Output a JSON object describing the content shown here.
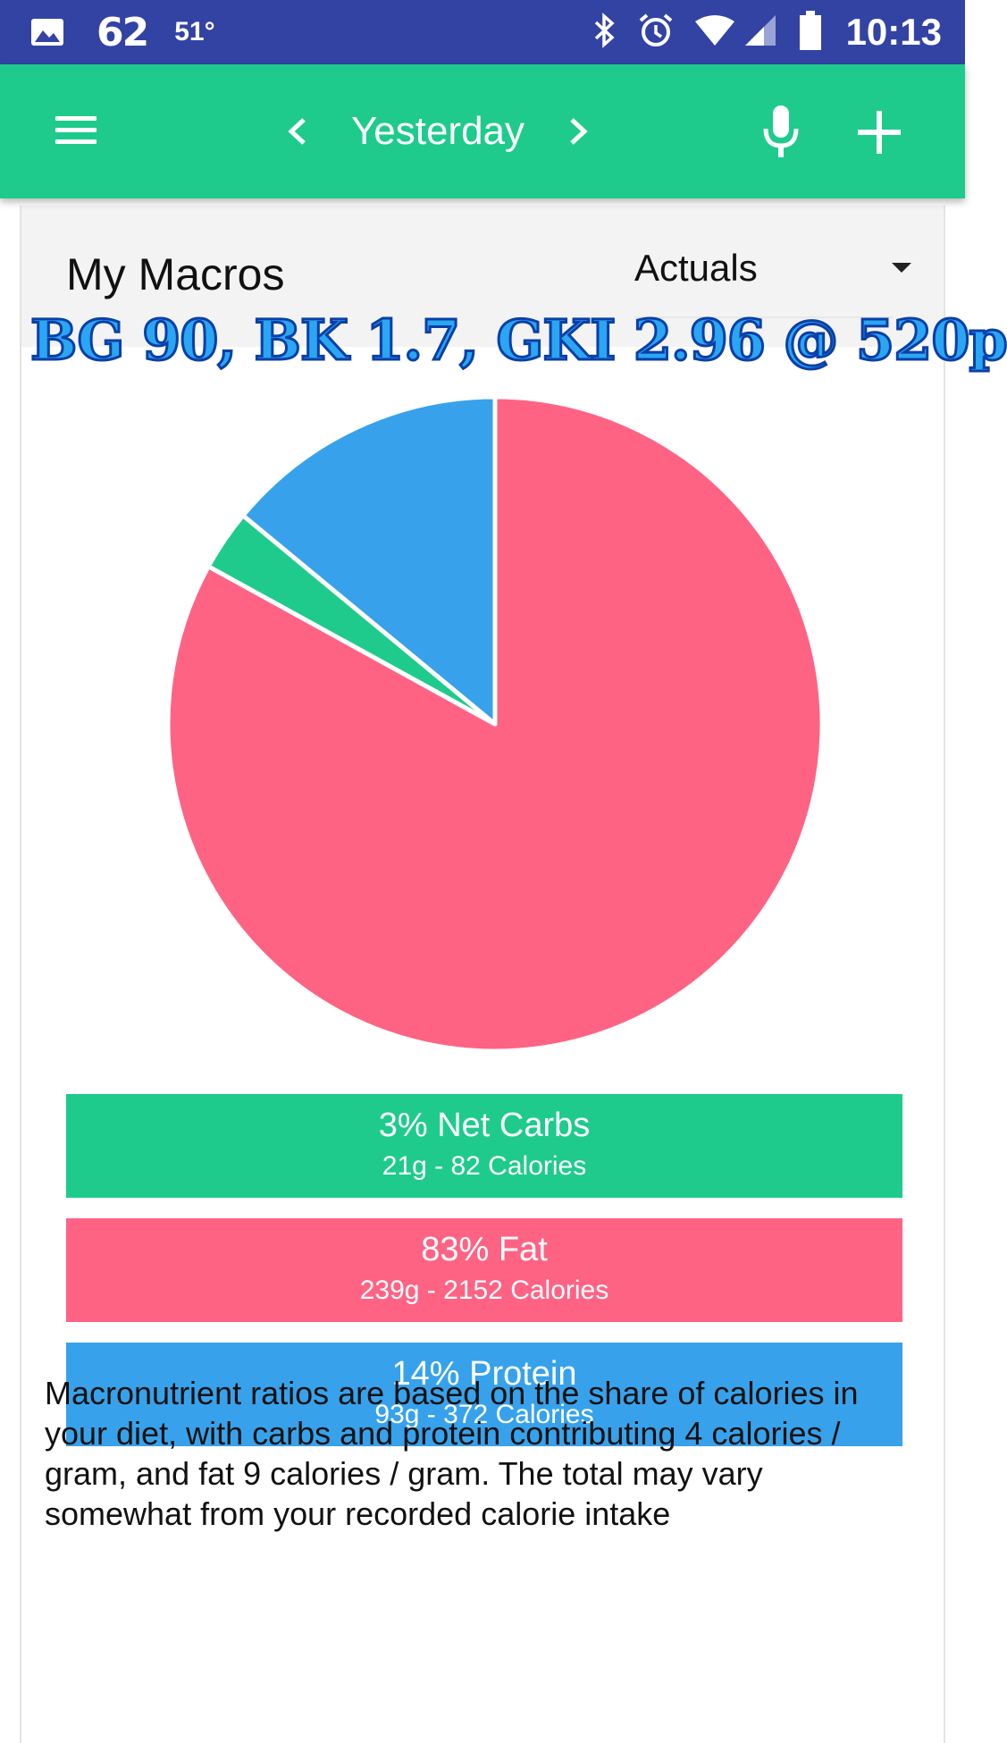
{
  "status_bar": {
    "notification_62": "62",
    "temperature": "51°",
    "time": "10:13",
    "icons": [
      "image-icon",
      "bluetooth-icon",
      "alarm-icon",
      "wifi-icon",
      "signal-icon",
      "battery-icon"
    ]
  },
  "app_bar": {
    "date_label": "Yesterday",
    "icons": [
      "menu-icon",
      "chevron-left-icon",
      "chevron-right-icon",
      "mic-icon",
      "plus-icon"
    ],
    "color": "#1ecb8d"
  },
  "card": {
    "title": "My Macros",
    "view_select": "Actuals",
    "overlay_note": "BG 90, BK 1.7, GKI 2.96 @ 520p"
  },
  "chart_data": {
    "type": "pie",
    "slices": [
      {
        "name": "Net Carbs",
        "value": 3,
        "color": "#1ecb8d"
      },
      {
        "name": "Fat",
        "value": 83,
        "color": "#ff6384"
      },
      {
        "name": "Protein",
        "value": 14,
        "color": "#37a2eb"
      }
    ]
  },
  "macros": [
    {
      "label": "3% Net Carbs",
      "detail": "21g - 82 Calories",
      "color": "#1ecb8d"
    },
    {
      "label": "83% Fat",
      "detail": "239g - 2152 Calories",
      "color": "#ff6384"
    },
    {
      "label": "14% Protein",
      "detail": "93g - 372 Calories",
      "color": "#37a2eb"
    }
  ],
  "description": "Macronutrient ratios are based on the share of calories in your diet, with carbs and protein contributing 4 calories / gram, and fat 9 calories / gram. The total may vary somewhat from your recorded calorie intake"
}
